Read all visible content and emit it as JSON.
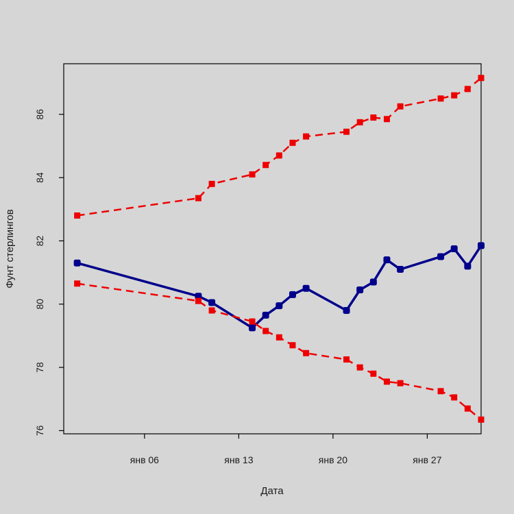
{
  "chart_data": {
    "type": "line",
    "title": "",
    "xlabel": "Дата",
    "ylabel": "Фунт стерлингов",
    "grid": false,
    "legend": "none",
    "xlim": [
      "2022-12-31",
      "2023-01-31"
    ],
    "ylim": [
      75.9,
      87.6
    ],
    "x_ticks": [
      {
        "date": "2023-01-06",
        "label": "янв 06"
      },
      {
        "date": "2023-01-13",
        "label": "янв 13"
      },
      {
        "date": "2023-01-20",
        "label": "янв 20"
      },
      {
        "date": "2023-01-27",
        "label": "янв 27"
      }
    ],
    "y_ticks": [
      76,
      78,
      80,
      82,
      84,
      86
    ],
    "x": [
      "2023-01-01",
      "2023-01-10",
      "2023-01-11",
      "2023-01-14",
      "2023-01-15",
      "2023-01-16",
      "2023-01-17",
      "2023-01-18",
      "2023-01-21",
      "2023-01-22",
      "2023-01-23",
      "2023-01-24",
      "2023-01-25",
      "2023-01-28",
      "2023-01-29",
      "2023-01-30",
      "2023-01-31"
    ],
    "series": [
      {
        "style": "solid",
        "color": "#00008b",
        "values": [
          81.3,
          80.25,
          80.05,
          79.25,
          79.65,
          79.95,
          80.3,
          80.5,
          79.8,
          80.45,
          80.7,
          81.4,
          81.1,
          81.5,
          81.75,
          81.2,
          81.85
        ]
      },
      {
        "style": "dashed",
        "color": "#ee0000",
        "values": [
          82.8,
          83.35,
          83.8,
          84.1,
          84.4,
          84.7,
          85.1,
          85.3,
          85.45,
          85.75,
          85.9,
          85.85,
          86.25,
          86.5,
          86.6,
          86.8,
          87.15
        ]
      },
      {
        "style": "dashed",
        "color": "#ee0000",
        "values": [
          80.65,
          80.1,
          79.8,
          79.45,
          79.15,
          78.95,
          78.7,
          78.45,
          78.25,
          78.0,
          77.8,
          77.55,
          77.5,
          77.25,
          77.05,
          76.7,
          76.35
        ]
      }
    ]
  }
}
